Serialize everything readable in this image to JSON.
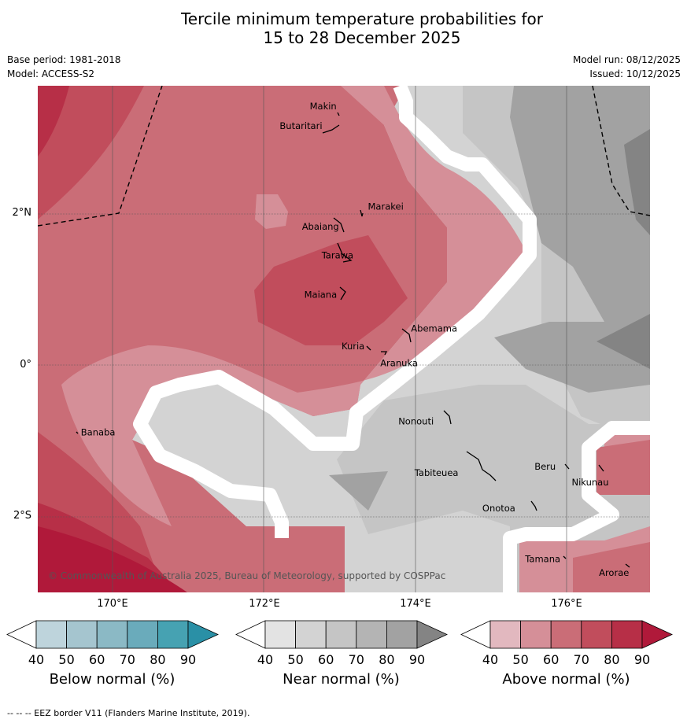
{
  "title_line1": "Tercile minimum temperature probabilities for",
  "title_line2": "15 to 28 December 2025",
  "meta": {
    "base_period": "Base period: 1981-2018",
    "model": "Model: ACCESS-S2",
    "model_run": "Model run: 08/12/2025",
    "issued": "Issued: 10/12/2025"
  },
  "axes": {
    "lat_labels": [
      "2°N",
      "0°",
      "2°S"
    ],
    "lon_labels": [
      "170°E",
      "172°E",
      "174°E",
      "176°E"
    ]
  },
  "places": [
    {
      "name": "Makin",
      "lon": 173.0,
      "lat": 3.38
    },
    {
      "name": "Butaritari",
      "lon": 172.8,
      "lat": 3.15
    },
    {
      "name": "Marakei",
      "lon": 173.3,
      "lat": 2.0
    },
    {
      "name": "Abaiang",
      "lon": 172.97,
      "lat": 1.85
    },
    {
      "name": "Tarawa",
      "lon": 172.97,
      "lat": 1.45
    },
    {
      "name": "Maiana",
      "lon": 173.0,
      "lat": 0.92
    },
    {
      "name": "Abemama",
      "lon": 173.87,
      "lat": 0.4
    },
    {
      "name": "Kuria",
      "lon": 173.42,
      "lat": 0.23
    },
    {
      "name": "Aranuka",
      "lon": 173.62,
      "lat": 0.17
    },
    {
      "name": "Nonouti",
      "lon": 174.43,
      "lat": -0.67
    },
    {
      "name": "Banaba",
      "lon": 169.53,
      "lat": -0.87
    },
    {
      "name": "Tabiteuea",
      "lon": 174.8,
      "lat": -1.35
    },
    {
      "name": "Beru",
      "lon": 176.0,
      "lat": -1.35
    },
    {
      "name": "Nikunau",
      "lon": 176.45,
      "lat": -1.35
    },
    {
      "name": "Onotoa",
      "lon": 175.55,
      "lat": -1.8
    },
    {
      "name": "Tamana",
      "lon": 175.98,
      "lat": -2.5
    },
    {
      "name": "Arorae",
      "lon": 176.82,
      "lat": -2.63
    }
  ],
  "copyright": "© Commonwealth of Australia 2025, Bureau of Meteorology, supported by COSPPac",
  "colorbars": [
    {
      "title": "Below normal (%)",
      "ticks": [
        "40",
        "50",
        "60",
        "70",
        "80",
        "90"
      ],
      "colors": [
        "#ffffff",
        "#bed4dc",
        "#a5c5cf",
        "#8bb9c5",
        "#6aabbb",
        "#46a2b2",
        "#2a90a6"
      ]
    },
    {
      "title": "Near normal (%)",
      "ticks": [
        "40",
        "50",
        "60",
        "70",
        "80",
        "90"
      ],
      "colors": [
        "#ffffff",
        "#e3e3e3",
        "#d3d3d3",
        "#c5c5c5",
        "#b4b4b4",
        "#a2a2a2",
        "#848484"
      ]
    },
    {
      "title": "Above normal (%)",
      "ticks": [
        "40",
        "50",
        "60",
        "70",
        "80",
        "90"
      ],
      "colors": [
        "#ffffff",
        "#e2b8bf",
        "#d58f98",
        "#ca6d77",
        "#c14d5c",
        "#b72f47",
        "#b0193a"
      ]
    }
  ],
  "footer": "--  --  -- EEZ border V11 (Flanders Marine Institute, 2019)."
}
